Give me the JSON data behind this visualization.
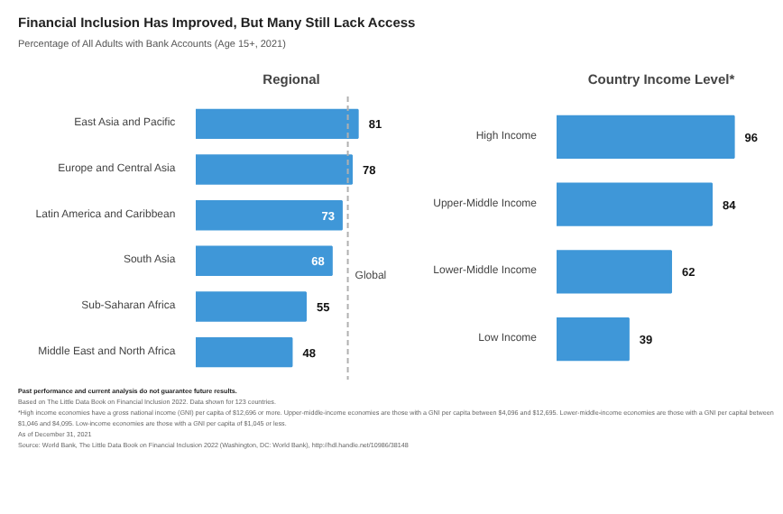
{
  "chart_data": [
    {
      "type": "bar",
      "orientation": "horizontal",
      "title": "Regional",
      "categories": [
        "East Asia and Pacific",
        "Europe and Central Asia",
        "Latin America and Caribbean",
        "South Asia",
        "Sub-Saharan Africa",
        "Middle East and North Africa"
      ],
      "values": [
        81,
        78,
        73,
        68,
        55,
        48
      ],
      "color": "#3f97d8",
      "data_labels": true,
      "grid": false,
      "ref_lines": [
        {
          "axis": "x",
          "value": 76,
          "label": "Global",
          "color": "#b0b0b0",
          "line_style": "dashed"
        }
      ],
      "annotations": [
        "Financial Inclusion Has Improved, But Many Still Lack Access",
        "Percentage of All Adults with Bank Accounts (Age 15+, 2021)",
        "Past performance and current analysis do not guarantee future results.",
        "Based on The Little Data Book on Financial Inclusion 2022. Data shown for 123 countries.",
        "*High income economies have a gross national income (GNI) per capita of $12,696 or more. Upper-middle-income economies are those with a GNI per capita between $4,096 and $12,695. Lower-middle-income economies are those with a GNI per capital between $1,046 and $4,095. Low-income economies are those with a GNI per capita of $1,045 or less.",
        "As of December 31, 2021",
        "Source: World Bank, The Little Data Book on Financial Inclusion 2022 (Washington, DC: World Bank), http://hdl.handle.net/10986/38148"
      ]
    },
    {
      "type": "bar",
      "orientation": "horizontal",
      "title": "Country Income Level*",
      "categories": [
        "High Income",
        "Upper-Middle Income",
        "Lower-Middle Income",
        "Low Income"
      ],
      "values": [
        96,
        84,
        62,
        39
      ],
      "color": "#3f97d8",
      "data_labels": true,
      "grid": false
    }
  ]
}
